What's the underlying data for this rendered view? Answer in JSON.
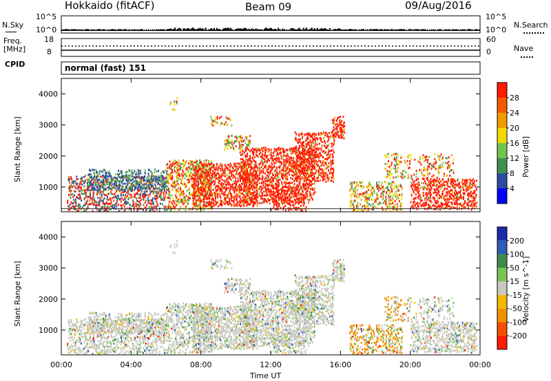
{
  "header": {
    "station": "Hokkaido (fitACF)",
    "beam": "Beam 09",
    "date": "09/Aug/2016"
  },
  "top_panel": {
    "left_label": "N.Sky",
    "left_ticks": [
      "10^5",
      "10^0"
    ],
    "right_label": "N.Search",
    "right_ticks": [
      "10^5",
      "10^0"
    ],
    "freq_label_1": "Freq.",
    "freq_label_2": "[MHz]",
    "freq_ticks": [
      "18",
      "8"
    ],
    "nave_label": "Nave",
    "nave_ticks": [
      "60",
      "0"
    ],
    "cpid_label": "CPID",
    "cpid_value": "normal (fast) 151"
  },
  "colors": {
    "power": [
      "#0000ff",
      "#2b4ca0",
      "#3e9050",
      "#73c350",
      "#f5d800",
      "#f09a00",
      "#f55a00",
      "#ff1a00"
    ],
    "velocity": [
      "#1a2aa8",
      "#2f5cb5",
      "#3e8a4c",
      "#7ac455",
      "#c8c8c0",
      "#f2b800",
      "#f09000",
      "#f25000",
      "#ff1a00"
    ]
  },
  "chart_data": [
    {
      "type": "heatmap",
      "panel": "power",
      "ylabel": "Slant Range [km]",
      "y_ticks": [
        "1000",
        "2000",
        "3000",
        "4000"
      ],
      "ylim": [
        200,
        4500
      ],
      "xlim": [
        0,
        24
      ],
      "colorbar_label": "Power [dB]",
      "colorbar_ticks": [
        "4",
        "8",
        "12",
        "16",
        "20",
        "24",
        "28"
      ],
      "clim": [
        0,
        32
      ]
    },
    {
      "type": "heatmap",
      "panel": "velocity",
      "xlabel": "Time UT",
      "x_ticks": [
        "00:00",
        "04:00",
        "08:00",
        "12:00",
        "16:00",
        "20:00",
        "00:00"
      ],
      "ylabel": "Slant Range [km]",
      "y_ticks": [
        "1000",
        "2000",
        "3000",
        "4000"
      ],
      "ylim": [
        200,
        4500
      ],
      "xlim": [
        0,
        24
      ],
      "colorbar_label": "Velocity [m s^-1]",
      "colorbar_ticks": [
        "200",
        "100",
        "50",
        "15",
        "-15",
        "-50",
        "-100",
        "-200"
      ],
      "clim": [
        -250,
        250
      ]
    }
  ]
}
